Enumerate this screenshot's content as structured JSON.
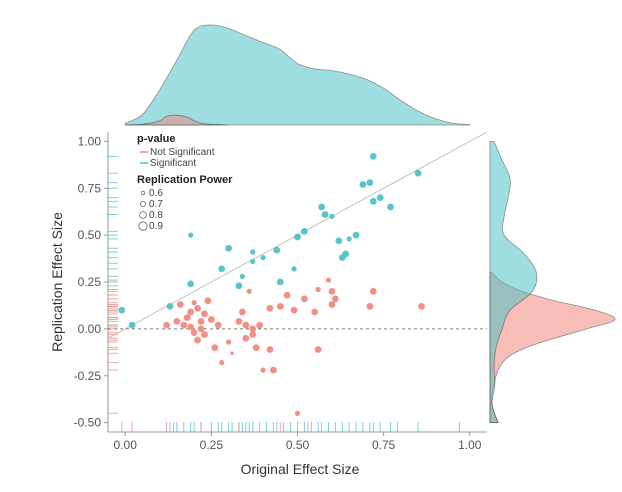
{
  "chart_data": {
    "type": "scatter",
    "xlabel": "Original Effect Size",
    "ylabel": "Replication Effect Size",
    "xlim": [
      -0.05,
      1.05
    ],
    "ylim": [
      -0.55,
      1.05
    ],
    "x_ticks": [
      "0.00",
      "0.25",
      "0.50",
      "0.75",
      "1.00"
    ],
    "x_tick_values": [
      0,
      0.25,
      0.5,
      0.75,
      1.0
    ],
    "y_ticks": [
      "1.00",
      "0.75",
      "0.50",
      "0.25",
      "0.00",
      "-0.25",
      "-0.50"
    ],
    "y_tick_values": [
      1.0,
      0.75,
      0.5,
      0.25,
      0.0,
      -0.25,
      -0.5
    ],
    "reference_line": "identity",
    "zero_line": "dashed",
    "legend": {
      "color_title": "p-value",
      "color_items": [
        {
          "label": "Not Significant",
          "color": "#F08A7E"
        },
        {
          "label": "Significant",
          "color": "#4FC2C8"
        }
      ],
      "size_title": "Replication Power",
      "size_items": [
        "0.6",
        "0.7",
        "0.8",
        "0.9"
      ],
      "size_values": [
        0.6,
        0.7,
        0.8,
        0.9
      ],
      "placement": "top-left"
    },
    "series": [
      {
        "name": "Significant",
        "color": "#4FC2C8",
        "points": [
          {
            "x": 0.02,
            "y": 0.02,
            "power": 0.8
          },
          {
            "x": -0.01,
            "y": 0.1,
            "power": 0.8
          },
          {
            "x": 0.13,
            "y": 0.12,
            "power": 0.8
          },
          {
            "x": 0.19,
            "y": 0.5,
            "power": 0.7
          },
          {
            "x": 0.19,
            "y": 0.24,
            "power": 0.8
          },
          {
            "x": 0.3,
            "y": 0.43,
            "power": 0.8
          },
          {
            "x": 0.28,
            "y": 0.32,
            "power": 0.8
          },
          {
            "x": 0.33,
            "y": 0.23,
            "power": 0.8
          },
          {
            "x": 0.34,
            "y": 0.28,
            "power": 0.7
          },
          {
            "x": 0.37,
            "y": 0.41,
            "power": 0.7
          },
          {
            "x": 0.37,
            "y": 0.36,
            "power": 0.7
          },
          {
            "x": 0.4,
            "y": 0.38,
            "power": 0.7
          },
          {
            "x": 0.44,
            "y": 0.42,
            "power": 0.8
          },
          {
            "x": 0.45,
            "y": 0.25,
            "power": 0.8
          },
          {
            "x": 0.49,
            "y": 0.32,
            "power": 0.7
          },
          {
            "x": 0.5,
            "y": 0.49,
            "power": 0.8
          },
          {
            "x": 0.52,
            "y": 0.52,
            "power": 0.8
          },
          {
            "x": 0.57,
            "y": 0.65,
            "power": 0.8
          },
          {
            "x": 0.58,
            "y": 0.61,
            "power": 0.8
          },
          {
            "x": 0.6,
            "y": 0.6,
            "power": 0.7
          },
          {
            "x": 0.62,
            "y": 0.47,
            "power": 0.8
          },
          {
            "x": 0.63,
            "y": 0.38,
            "power": 0.8
          },
          {
            "x": 0.64,
            "y": 0.4,
            "power": 0.8
          },
          {
            "x": 0.65,
            "y": 0.48,
            "power": 0.7
          },
          {
            "x": 0.67,
            "y": 0.5,
            "power": 0.8
          },
          {
            "x": 0.69,
            "y": 0.77,
            "power": 0.8
          },
          {
            "x": 0.71,
            "y": 0.78,
            "power": 0.8
          },
          {
            "x": 0.72,
            "y": 0.68,
            "power": 0.8
          },
          {
            "x": 0.74,
            "y": 0.7,
            "power": 0.8
          },
          {
            "x": 0.72,
            "y": 0.92,
            "power": 0.8
          },
          {
            "x": 0.77,
            "y": 0.65,
            "power": 0.8
          },
          {
            "x": 0.85,
            "y": 0.83,
            "power": 0.8
          }
        ]
      },
      {
        "name": "Not Significant",
        "color": "#F08A7E",
        "points": [
          {
            "x": 0.12,
            "y": 0.02,
            "power": 0.8
          },
          {
            "x": 0.15,
            "y": 0.04,
            "power": 0.8
          },
          {
            "x": 0.16,
            "y": 0.13,
            "power": 0.8
          },
          {
            "x": 0.17,
            "y": 0.02,
            "power": 0.8
          },
          {
            "x": 0.18,
            "y": 0.06,
            "power": 0.8
          },
          {
            "x": 0.19,
            "y": 0.01,
            "power": 0.8
          },
          {
            "x": 0.19,
            "y": 0.09,
            "power": 0.8
          },
          {
            "x": 0.2,
            "y": -0.02,
            "power": 0.8
          },
          {
            "x": 0.2,
            "y": 0.14,
            "power": 0.7
          },
          {
            "x": 0.21,
            "y": 0.11,
            "power": 0.8
          },
          {
            "x": 0.21,
            "y": -0.06,
            "power": 0.8
          },
          {
            "x": 0.22,
            "y": 0.04,
            "power": 0.8
          },
          {
            "x": 0.22,
            "y": 0.0,
            "power": 0.8
          },
          {
            "x": 0.23,
            "y": 0.08,
            "power": 0.8
          },
          {
            "x": 0.23,
            "y": -0.03,
            "power": 0.8
          },
          {
            "x": 0.24,
            "y": 0.15,
            "power": 0.8
          },
          {
            "x": 0.25,
            "y": 0.05,
            "power": 0.8
          },
          {
            "x": 0.26,
            "y": -0.1,
            "power": 0.8
          },
          {
            "x": 0.27,
            "y": 0.02,
            "power": 0.8
          },
          {
            "x": 0.28,
            "y": -0.18,
            "power": 0.7
          },
          {
            "x": 0.3,
            "y": -0.07,
            "power": 0.7
          },
          {
            "x": 0.31,
            "y": -0.13,
            "power": 0.6
          },
          {
            "x": 0.33,
            "y": 0.04,
            "power": 0.8
          },
          {
            "x": 0.34,
            "y": 0.09,
            "power": 0.8
          },
          {
            "x": 0.35,
            "y": 0.02,
            "power": 0.8
          },
          {
            "x": 0.35,
            "y": -0.05,
            "power": 0.8
          },
          {
            "x": 0.36,
            "y": 0.2,
            "power": 0.7
          },
          {
            "x": 0.37,
            "y": 0.0,
            "power": 0.8
          },
          {
            "x": 0.37,
            "y": -0.03,
            "power": 0.8
          },
          {
            "x": 0.38,
            "y": -0.1,
            "power": 0.8
          },
          {
            "x": 0.39,
            "y": 0.02,
            "power": 0.8
          },
          {
            "x": 0.4,
            "y": -0.22,
            "power": 0.7
          },
          {
            "x": 0.42,
            "y": 0.11,
            "power": 0.8
          },
          {
            "x": 0.42,
            "y": -0.11,
            "power": 0.8
          },
          {
            "x": 0.43,
            "y": -0.22,
            "power": 0.8
          },
          {
            "x": 0.45,
            "y": 0.12,
            "power": 0.8
          },
          {
            "x": 0.47,
            "y": 0.18,
            "power": 0.8
          },
          {
            "x": 0.49,
            "y": 0.1,
            "power": 0.8
          },
          {
            "x": 0.5,
            "y": -0.45,
            "power": 0.7
          },
          {
            "x": 0.52,
            "y": 0.16,
            "power": 0.8
          },
          {
            "x": 0.55,
            "y": 0.09,
            "power": 0.8
          },
          {
            "x": 0.56,
            "y": 0.21,
            "power": 0.7
          },
          {
            "x": 0.56,
            "y": -0.11,
            "power": 0.8
          },
          {
            "x": 0.59,
            "y": 0.26,
            "power": 0.7
          },
          {
            "x": 0.6,
            "y": 0.2,
            "power": 0.8
          },
          {
            "x": 0.6,
            "y": 0.13,
            "power": 0.8
          },
          {
            "x": 0.61,
            "y": 0.16,
            "power": 0.8
          },
          {
            "x": 0.71,
            "y": 0.12,
            "power": 0.8
          },
          {
            "x": 0.72,
            "y": 0.2,
            "power": 0.8
          },
          {
            "x": 0.86,
            "y": 0.12,
            "power": 0.8
          }
        ]
      }
    ],
    "marginal_top_density": {
      "significant": {
        "x": [
          0.0,
          0.05,
          0.1,
          0.15,
          0.2,
          0.25,
          0.3,
          0.35,
          0.4,
          0.45,
          0.5,
          0.55,
          0.6,
          0.65,
          0.7,
          0.75,
          0.8,
          0.85,
          0.9,
          0.95,
          1.0
        ],
        "density": [
          0.05,
          0.3,
          1.0,
          1.85,
          2.7,
          2.85,
          2.75,
          2.55,
          2.35,
          2.15,
          1.75,
          1.6,
          1.55,
          1.45,
          1.3,
          1.05,
          0.7,
          0.4,
          0.18,
          0.05,
          0.01
        ]
      },
      "not_significant": {
        "x": [
          0.0,
          0.05,
          0.1,
          0.12,
          0.15,
          0.18,
          0.2,
          0.22,
          0.25,
          0.3
        ],
        "density": [
          0.0,
          0.02,
          0.12,
          0.25,
          0.28,
          0.22,
          0.12,
          0.05,
          0.02,
          0.0
        ]
      }
    },
    "marginal_right_density": {
      "significant": {
        "y": [
          -0.5,
          -0.4,
          -0.3,
          -0.2,
          -0.1,
          0.0,
          0.1,
          0.2,
          0.3,
          0.4,
          0.5,
          0.6,
          0.7,
          0.8,
          0.9,
          1.0
        ],
        "density": [
          0.2,
          0.05,
          0.12,
          0.1,
          0.15,
          0.3,
          0.5,
          1.05,
          1.15,
          0.85,
          0.35,
          0.35,
          0.45,
          0.5,
          0.3,
          0.1
        ]
      },
      "not_significant": {
        "y": [
          -0.5,
          -0.45,
          -0.4,
          -0.35,
          -0.3,
          -0.25,
          -0.2,
          -0.15,
          -0.1,
          -0.05,
          0.0,
          0.05,
          0.1,
          0.15,
          0.2,
          0.25,
          0.3
        ],
        "density": [
          0.2,
          0.1,
          0.05,
          0.05,
          0.1,
          0.15,
          0.25,
          0.45,
          0.9,
          1.6,
          2.4,
          3.1,
          2.6,
          1.6,
          0.8,
          0.3,
          0.05
        ]
      }
    },
    "rug_x": {
      "significant": [
        0.13,
        0.15,
        0.17,
        0.19,
        0.2,
        0.22,
        0.25,
        0.27,
        0.28,
        0.3,
        0.31,
        0.33,
        0.34,
        0.35,
        0.36,
        0.37,
        0.39,
        0.41,
        0.43,
        0.44,
        0.46,
        0.48,
        0.5,
        0.52,
        0.54,
        0.56,
        0.57,
        0.59,
        0.61,
        0.63,
        0.65,
        0.67,
        0.69,
        0.71,
        0.72,
        0.74,
        0.77,
        0.79,
        0.85,
        0.97
      ],
      "not_significant": [
        -0.01,
        0.02,
        0.12,
        0.14,
        0.22,
        0.33,
        0.45,
        0.53
      ]
    },
    "rug_y": {
      "significant": [
        0.92,
        0.83,
        0.78,
        0.75,
        0.7,
        0.68,
        0.65,
        0.61,
        0.52,
        0.5,
        0.48,
        0.43,
        0.41,
        0.38,
        0.35,
        0.32,
        0.28,
        0.25,
        0.23,
        0.12,
        0.1,
        0.06,
        0.02
      ],
      "not_significant": [
        0.26,
        0.21,
        0.2,
        0.18,
        0.16,
        0.14,
        0.13,
        0.12,
        0.11,
        0.1,
        0.09,
        0.08,
        0.06,
        0.05,
        0.04,
        0.02,
        0.01,
        0.0,
        -0.02,
        -0.03,
        -0.05,
        -0.06,
        -0.07,
        -0.1,
        -0.11,
        -0.13,
        -0.18,
        -0.22,
        -0.45
      ]
    }
  }
}
